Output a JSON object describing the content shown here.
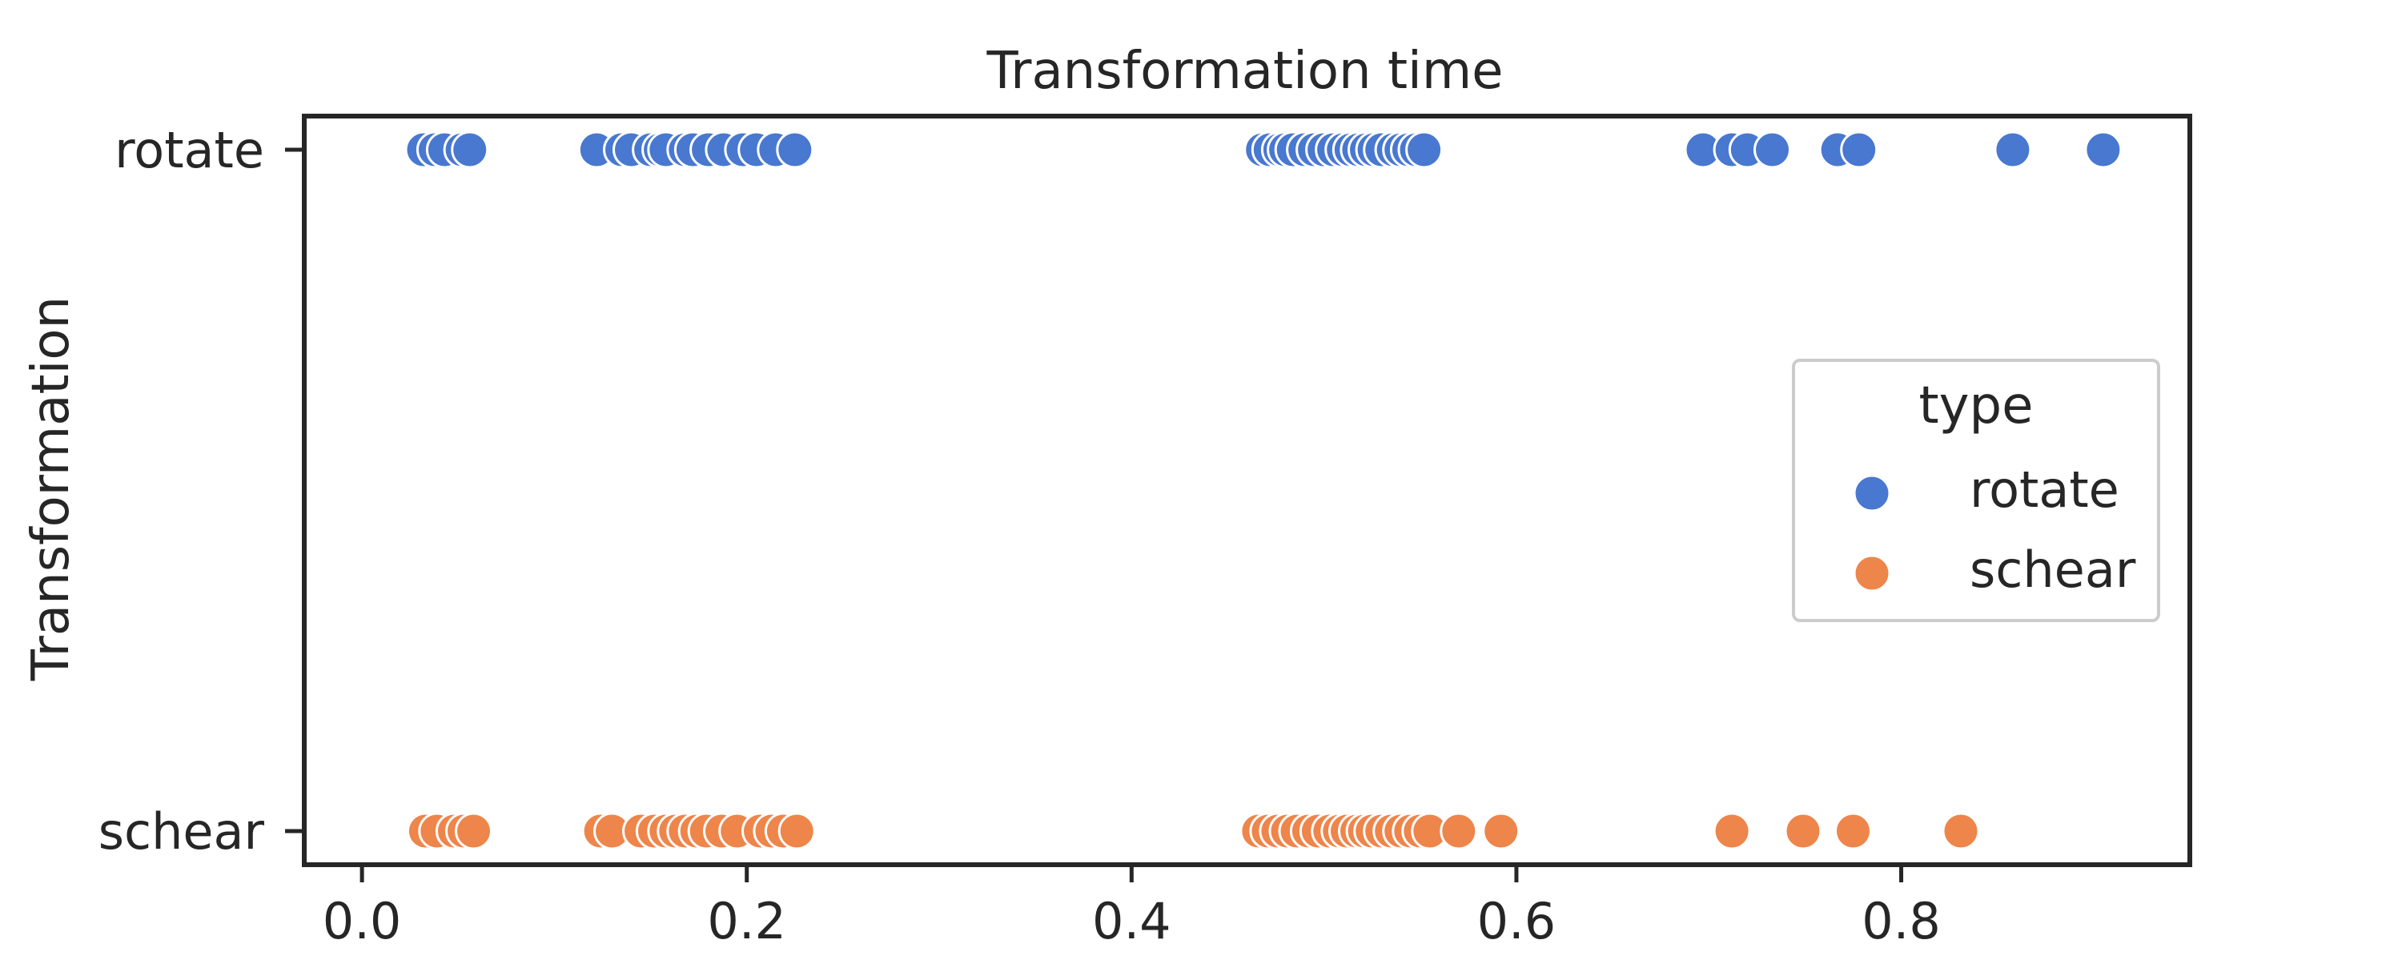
{
  "chart_data": {
    "type": "scatter",
    "title": "Transformation time",
    "xlabel": "",
    "ylabel": "Transformation",
    "xlim": [
      -0.03,
      0.95
    ],
    "x_ticks": [
      0.0,
      0.2,
      0.4,
      0.6,
      0.8
    ],
    "x_tick_labels": [
      "0.0",
      "0.2",
      "0.4",
      "0.6",
      "0.8"
    ],
    "categories": [
      "rotate",
      "schear"
    ],
    "grid": false,
    "legend": {
      "title": "type",
      "placement": "right",
      "entries": [
        "rotate",
        "schear"
      ]
    },
    "series": [
      {
        "name": "rotate",
        "color": "#4878d0",
        "x": [
          0.032,
          0.038,
          0.043,
          0.052,
          0.056,
          0.122,
          0.135,
          0.14,
          0.15,
          0.155,
          0.158,
          0.168,
          0.172,
          0.18,
          0.188,
          0.198,
          0.205,
          0.215,
          0.225,
          0.468,
          0.472,
          0.477,
          0.48,
          0.484,
          0.49,
          0.495,
          0.5,
          0.505,
          0.51,
          0.514,
          0.518,
          0.522,
          0.526,
          0.53,
          0.536,
          0.54,
          0.544,
          0.548,
          0.552,
          0.697,
          0.712,
          0.72,
          0.733,
          0.767,
          0.778,
          0.858,
          0.905
        ]
      },
      {
        "name": "schear",
        "color": "#ee854a",
        "x": [
          0.033,
          0.039,
          0.048,
          0.053,
          0.058,
          0.124,
          0.13,
          0.145,
          0.152,
          0.158,
          0.163,
          0.168,
          0.174,
          0.179,
          0.187,
          0.195,
          0.207,
          0.213,
          0.219,
          0.226,
          0.466,
          0.471,
          0.476,
          0.481,
          0.486,
          0.492,
          0.497,
          0.503,
          0.508,
          0.512,
          0.517,
          0.521,
          0.525,
          0.53,
          0.535,
          0.54,
          0.545,
          0.55,
          0.555,
          0.57,
          0.592,
          0.712,
          0.749,
          0.775,
          0.831
        ]
      }
    ]
  }
}
